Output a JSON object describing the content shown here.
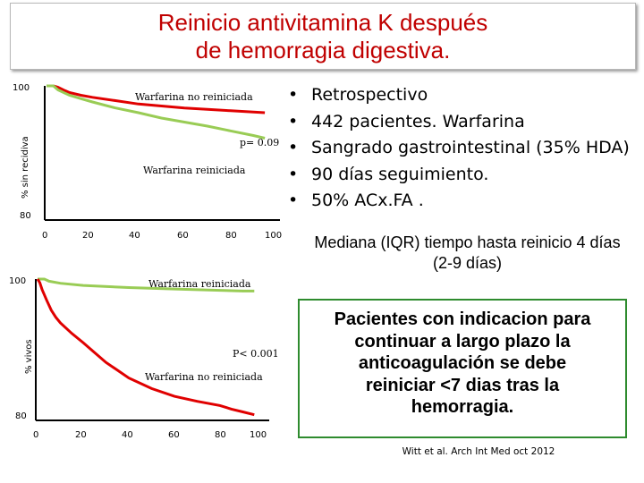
{
  "title": {
    "line1": "Reinicio antivitamina K después",
    "line2": "de hemorragia digestiva."
  },
  "colors": {
    "title": "#c00000",
    "red_line": "#e00000",
    "green_line": "#99cc55",
    "box_border": "#2e8b2e"
  },
  "bullets": [
    "Retrospectivo",
    "442 pacientes. Warfarina",
    "Sangrado gastrointestinal (35% HDA)",
    "90 días seguimiento.",
    "50% ACx.FA ."
  ],
  "median_text": "Mediana (IQR) tiempo hasta reinicio 4 días (2-9 días)",
  "recommendation": {
    "line1": "Pacientes con indicacion para",
    "line2": "continuar a largo plazo la",
    "line3": "anticoagulación se debe",
    "line4": "reiniciar <7 dias tras la",
    "line5": "hemorragia."
  },
  "citation": "Witt et al. Arch Int Med oct 2012",
  "chart_data": [
    {
      "type": "line",
      "ylabel": "% sin recidiva",
      "xlabel": "",
      "xlim": [
        0,
        100
      ],
      "ylim": [
        80,
        100
      ],
      "x_ticks": [
        "0",
        "20",
        "40",
        "60",
        "80",
        "100"
      ],
      "y_ticks": [
        "80",
        "100"
      ],
      "p_value": "p= 0.09",
      "annotations": {
        "red": "Warfarina no reiniciada",
        "green": "Warfarina reiniciada"
      },
      "series": [
        {
          "name": "Warfarina no reiniciada",
          "color": "#e00000",
          "x": [
            0,
            3,
            5,
            8,
            10,
            15,
            20,
            30,
            40,
            50,
            60,
            70,
            80,
            90,
            95
          ],
          "y": [
            100,
            100,
            99.8,
            99.3,
            99.0,
            98.6,
            98.3,
            97.8,
            97.3,
            97.0,
            96.7,
            96.5,
            96.3,
            96.1,
            96.0
          ]
        },
        {
          "name": "Warfarina reiniciada",
          "color": "#99cc55",
          "x": [
            0,
            3,
            5,
            8,
            10,
            15,
            20,
            30,
            40,
            50,
            60,
            70,
            80,
            90,
            95
          ],
          "y": [
            100,
            100,
            99.4,
            98.9,
            98.6,
            98.1,
            97.6,
            96.7,
            96.0,
            95.2,
            94.6,
            94.0,
            93.3,
            92.6,
            92.2
          ]
        }
      ]
    },
    {
      "type": "line",
      "ylabel": "% vivos",
      "xlabel": "",
      "xlim": [
        0,
        100
      ],
      "ylim": [
        80,
        100
      ],
      "x_ticks": [
        "0",
        "20",
        "40",
        "60",
        "80",
        "100"
      ],
      "y_ticks": [
        "80",
        "100"
      ],
      "p_value": "P< 0.001",
      "annotations": {
        "red": "Warfarina no reiniciada",
        "green": "Warfarina reiniciada"
      },
      "series": [
        {
          "name": "Warfarina reiniciada",
          "color": "#99cc55",
          "x": [
            0,
            3,
            5,
            10,
            20,
            40,
            60,
            80,
            90,
            95
          ],
          "y": [
            100,
            100,
            99.7,
            99.4,
            99.1,
            98.8,
            98.6,
            98.4,
            98.3,
            98.3
          ]
        },
        {
          "name": "Warfarina no reiniciada",
          "color": "#e00000",
          "x": [
            0,
            1,
            2,
            4,
            6,
            8,
            10,
            15,
            20,
            25,
            30,
            35,
            40,
            50,
            60,
            70,
            80,
            85,
            90,
            95
          ],
          "y": [
            100,
            99.5,
            98.5,
            97,
            95.6,
            94.6,
            93.8,
            92.3,
            91,
            89.6,
            88.2,
            87.1,
            86,
            84.5,
            83.4,
            82.7,
            82.1,
            81.6,
            81.2,
            80.8
          ]
        }
      ]
    }
  ]
}
